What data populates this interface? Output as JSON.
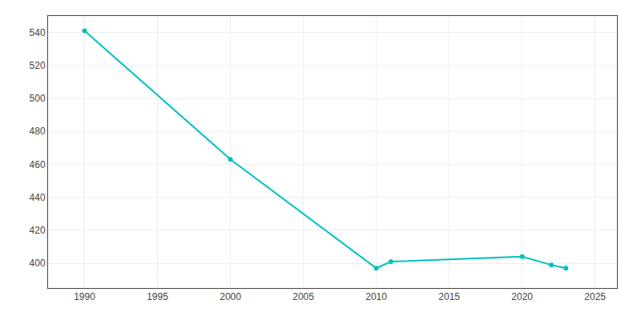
{
  "chart_data": {
    "type": "line",
    "x": [
      1990,
      2000,
      2010,
      2011,
      2020,
      2022,
      2023
    ],
    "values": [
      541,
      463,
      397,
      401,
      404,
      399,
      397
    ],
    "color": "#00C0C0",
    "marker": "circle",
    "xlim": [
      1987.5,
      2026.5
    ],
    "xticks": [
      1990,
      1995,
      2000,
      2005,
      2010,
      2015,
      2020,
      2025
    ],
    "ylim": [
      385,
      550
    ],
    "yticks": [
      400,
      420,
      440,
      460,
      480,
      500,
      520,
      540
    ],
    "grid": true
  }
}
